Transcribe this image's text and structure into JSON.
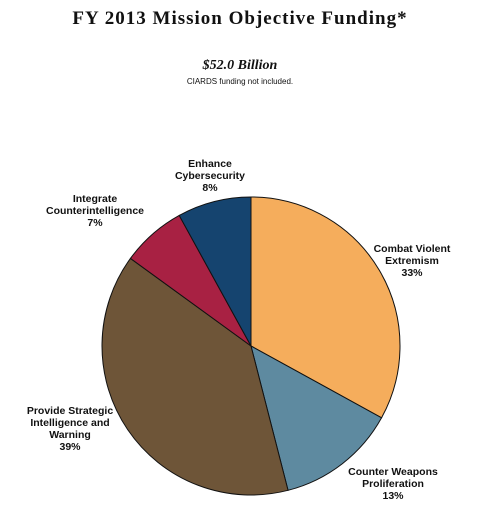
{
  "chart_data": {
    "type": "pie",
    "title": "FY 2013 Mission Objective Funding*",
    "subtitle": "$52.0 Billion",
    "note": "CIARDS funding not included.",
    "categories": [
      "Combat Violent Extremism",
      "Counter Weapons Proliferation",
      "Provide Strategic Intelligence and Warning",
      "Integrate Counterintelligence",
      "Enhance Cybersecurity"
    ],
    "values": [
      33,
      13,
      39,
      7,
      8
    ],
    "value_labels": [
      "33%",
      "13%",
      "39%",
      "7%",
      "8%"
    ],
    "colors": [
      "#f5ad5c",
      "#5e8aa0",
      "#6e5538",
      "#a82143",
      "#15446f"
    ]
  }
}
